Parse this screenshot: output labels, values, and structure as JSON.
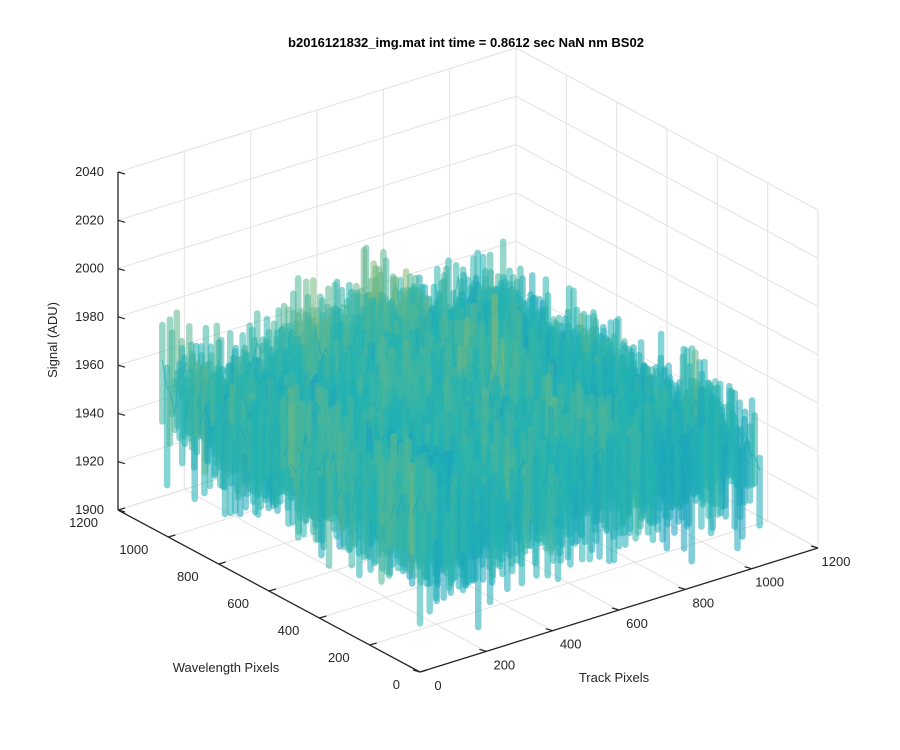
{
  "chart_data": {
    "type": "surface",
    "title": "b2016121832_img.mat int time = 0.8612 sec  NaN nm BS02",
    "xlabel": "Track Pixels",
    "ylabel": "Wavelength Pixels",
    "zlabel": "Signal (ADU)",
    "xlim": [
      0,
      1200
    ],
    "ylim": [
      0,
      1200
    ],
    "zlim": [
      1900,
      2040
    ],
    "xticks": [
      "0",
      "200",
      "400",
      "600",
      "800",
      "1000",
      "1200"
    ],
    "yticks": [
      "0",
      "200",
      "400",
      "600",
      "800",
      "1000",
      "1200"
    ],
    "zticks": [
      "1900",
      "1920",
      "1940",
      "1960",
      "1980",
      "2000",
      "2020",
      "2040"
    ],
    "grid": true,
    "colormap": "parula",
    "data_extent": {
      "track_pixels": [
        0,
        1024
      ],
      "wavelength_pixels": [
        0,
        1024
      ]
    },
    "signal_range": [
      1902,
      2012
    ],
    "mean_signal": 1950
  },
  "colors": {
    "axis": "#262626",
    "grid": "#e2e2e2",
    "low": "#0a72d8",
    "mid": "#21b3b3",
    "high": "#f2c033"
  }
}
